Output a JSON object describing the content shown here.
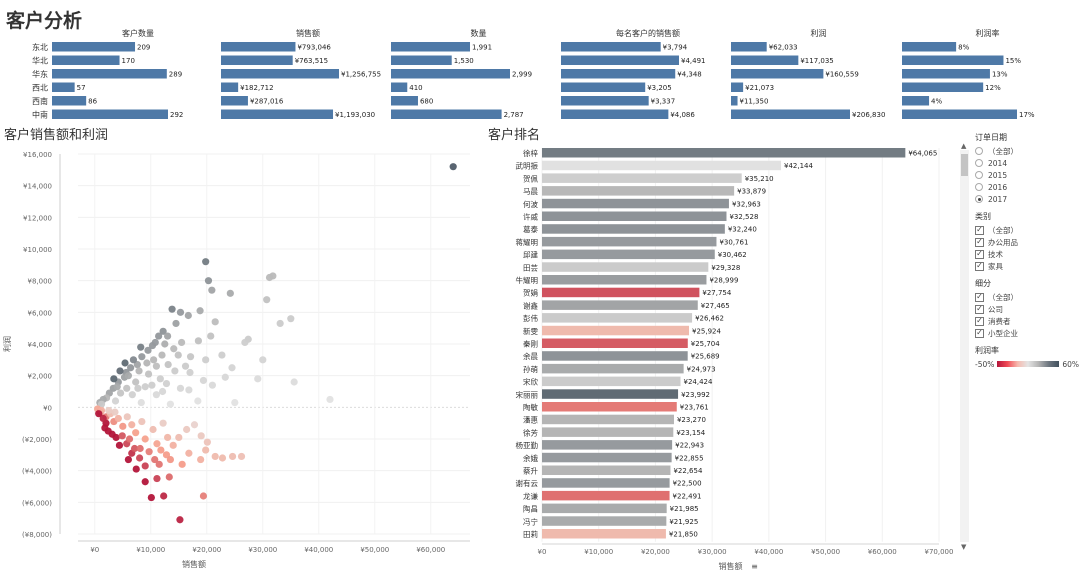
{
  "page_title": "客户分析",
  "colors": {
    "bar_blue": "#4e79a7",
    "text": "#333333",
    "grid": "#eeeeee"
  },
  "sections": {
    "scatter_title": "客户销售额和利润",
    "rank_title": "客户排名"
  },
  "chart_data": [
    {
      "type": "bar",
      "id": "region_summary",
      "categories": [
        "东北",
        "华北",
        "华东",
        "西北",
        "西南",
        "中南"
      ],
      "series": [
        {
          "name": "客户数量",
          "values": [
            209,
            170,
            289,
            57,
            86,
            292
          ],
          "labels": [
            "209",
            "170",
            "289",
            "57",
            "86",
            "292"
          ]
        },
        {
          "name": "销售额",
          "values": [
            793046,
            763515,
            1256755,
            182712,
            287016,
            1193030
          ],
          "labels": [
            "¥793,046",
            "¥763,515",
            "¥1,256,755",
            "¥182,712",
            "¥287,016",
            "¥1,193,030"
          ]
        },
        {
          "name": "数量",
          "values": [
            1991,
            1530,
            2999,
            410,
            680,
            2787
          ],
          "labels": [
            "1,991",
            "1,530",
            "2,999",
            "410",
            "680",
            "2,787"
          ]
        },
        {
          "name": "每名客户的销售额",
          "values": [
            3794,
            4491,
            4348,
            3205,
            3337,
            4086
          ],
          "labels": [
            "¥3,794",
            "¥4,491",
            "¥4,348",
            "¥3,205",
            "¥3,337",
            "¥4,086"
          ]
        },
        {
          "name": "利润",
          "values": [
            62033,
            117035,
            160559,
            21073,
            11350,
            206830
          ],
          "labels": [
            "¥62,033",
            "¥117,035",
            "¥160,559",
            "¥21,073",
            "¥11,350",
            "¥206,830"
          ]
        },
        {
          "name": "利润率",
          "values": [
            8,
            15,
            13,
            12,
            4,
            17
          ],
          "labels": [
            "8%",
            "15%",
            "13%",
            "12%",
            "4%",
            "17%"
          ]
        }
      ]
    },
    {
      "type": "scatter",
      "id": "customer_sales_profit",
      "title": "客户销售额和利润",
      "xlabel": "销售额",
      "ylabel": "利润",
      "xlim": [
        -3000,
        67000
      ],
      "ylim": [
        -8000,
        16000
      ],
      "x_ticks": [
        0,
        10000,
        20000,
        30000,
        40000,
        50000,
        60000
      ],
      "x_tick_labels": [
        "¥0",
        "¥10,000",
        "¥20,000",
        "¥30,000",
        "¥40,000",
        "¥50,000",
        "¥60,000"
      ],
      "y_ticks": [
        16000,
        14000,
        12000,
        10000,
        8000,
        6000,
        4000,
        2000,
        0,
        -2000,
        -4000,
        -6000,
        -8000
      ],
      "y_tick_labels": [
        "¥16,000",
        "¥14,000",
        "¥12,000",
        "¥10,000",
        "¥8,000",
        "¥6,000",
        "¥4,000",
        "¥2,000",
        "¥0",
        "(¥2,000)",
        "(¥4,000)",
        "(¥6,000)",
        "(¥8,000)"
      ],
      "points": [
        [
          64000,
          15200,
          0.56
        ],
        [
          19800,
          9200,
          0.47
        ],
        [
          31800,
          8300,
          0.26
        ],
        [
          31200,
          8200,
          0.26
        ],
        [
          20300,
          8000,
          0.4
        ],
        [
          20900,
          7400,
          0.35
        ],
        [
          24200,
          7200,
          0.33
        ],
        [
          30700,
          6800,
          0.22
        ],
        [
          13800,
          6200,
          0.45
        ],
        [
          15300,
          6000,
          0.38
        ],
        [
          18800,
          6100,
          0.33
        ],
        [
          16700,
          5800,
          0.35
        ],
        [
          21500,
          5400,
          0.25
        ],
        [
          33100,
          5300,
          0.16
        ],
        [
          35000,
          5600,
          0.16
        ],
        [
          14500,
          5300,
          0.36
        ],
        [
          12200,
          4800,
          0.4
        ],
        [
          11400,
          4500,
          0.39
        ],
        [
          13000,
          4500,
          0.35
        ],
        [
          20700,
          4500,
          0.22
        ],
        [
          18500,
          4200,
          0.23
        ],
        [
          15500,
          4100,
          0.26
        ],
        [
          27400,
          4300,
          0.16
        ],
        [
          26800,
          4100,
          0.15
        ],
        [
          10300,
          3900,
          0.38
        ],
        [
          9500,
          3600,
          0.38
        ],
        [
          12000,
          3300,
          0.28
        ],
        [
          8400,
          3200,
          0.38
        ],
        [
          17100,
          3200,
          0.19
        ],
        [
          22700,
          3300,
          0.15
        ],
        [
          19800,
          3000,
          0.15
        ],
        [
          30000,
          3000,
          0.1
        ],
        [
          9300,
          2800,
          0.3
        ],
        [
          7600,
          2700,
          0.35
        ],
        [
          11000,
          2600,
          0.24
        ],
        [
          6400,
          2500,
          0.39
        ],
        [
          5600,
          2200,
          0.39
        ],
        [
          14300,
          2300,
          0.16
        ],
        [
          24500,
          2500,
          0.1
        ],
        [
          17000,
          2200,
          0.13
        ],
        [
          35600,
          1600,
          0.05
        ],
        [
          29100,
          1800,
          0.06
        ],
        [
          5300,
          1900,
          0.36
        ],
        [
          4200,
          1600,
          0.38
        ],
        [
          7300,
          1600,
          0.22
        ],
        [
          12800,
          1500,
          0.12
        ],
        [
          9000,
          1300,
          0.14
        ],
        [
          15300,
          1200,
          0.08
        ],
        [
          21000,
          1400,
          0.07
        ],
        [
          3300,
          1200,
          0.36
        ],
        [
          2600,
          900,
          0.35
        ],
        [
          4600,
          900,
          0.2
        ],
        [
          6700,
          800,
          0.12
        ],
        [
          11000,
          800,
          0.07
        ],
        [
          42000,
          500,
          0.01
        ],
        [
          18400,
          400,
          0.02
        ],
        [
          2100,
          600,
          0.29
        ],
        [
          1500,
          500,
          0.33
        ],
        [
          3700,
          400,
          0.11
        ],
        [
          8300,
          300,
          0.04
        ],
        [
          900,
          300,
          0.33
        ],
        [
          1200,
          200,
          0.17
        ],
        [
          13500,
          200,
          0.01
        ],
        [
          25000,
          300,
          0.01
        ],
        [
          6000,
          2000,
          0.33
        ],
        [
          7900,
          2300,
          0.29
        ],
        [
          9600,
          2100,
          0.22
        ],
        [
          10500,
          3000,
          0.29
        ],
        [
          11700,
          1800,
          0.15
        ],
        [
          13100,
          2700,
          0.21
        ],
        [
          14900,
          3300,
          0.22
        ],
        [
          16200,
          2600,
          0.16
        ],
        [
          8200,
          3800,
          0.46
        ],
        [
          10800,
          4100,
          0.38
        ],
        [
          12500,
          4000,
          0.32
        ],
        [
          14100,
          3700,
          0.26
        ],
        [
          6900,
          3000,
          0.43
        ],
        [
          5400,
          2800,
          0.52
        ],
        [
          4500,
          2300,
          0.51
        ],
        [
          3400,
          1800,
          0.53
        ],
        [
          4000,
          1300,
          0.33
        ],
        [
          5700,
          1200,
          0.21
        ],
        [
          7700,
          1200,
          0.16
        ],
        [
          10200,
          1400,
          0.14
        ],
        [
          12100,
          1000,
          0.08
        ],
        [
          16800,
          1100,
          0.07
        ],
        [
          19400,
          1700,
          0.09
        ],
        [
          23300,
          1900,
          0.08
        ],
        [
          500,
          -100,
          -0.2
        ],
        [
          1000,
          -300,
          -0.3
        ],
        [
          2000,
          -600,
          -0.3
        ],
        [
          2800,
          -400,
          -0.14
        ],
        [
          3400,
          -900,
          -0.26
        ],
        [
          4200,
          -700,
          -0.17
        ],
        [
          5000,
          -1200,
          -0.24
        ],
        [
          5800,
          -600,
          -0.1
        ],
        [
          6600,
          -1100,
          -0.17
        ],
        [
          7300,
          -1600,
          -0.22
        ],
        [
          8400,
          -900,
          -0.11
        ],
        [
          9000,
          -2000,
          -0.22
        ],
        [
          10400,
          -1400,
          -0.13
        ],
        [
          11100,
          -2300,
          -0.21
        ],
        [
          12200,
          -1000,
          -0.08
        ],
        [
          13000,
          -1900,
          -0.15
        ],
        [
          3100,
          -1700,
          -0.55
        ],
        [
          4400,
          -2400,
          -0.55
        ],
        [
          5700,
          -2300,
          -0.4
        ],
        [
          6600,
          -2900,
          -0.44
        ],
        [
          8000,
          -3200,
          -0.4
        ],
        [
          9000,
          -3700,
          -0.41
        ],
        [
          7400,
          -3900,
          -0.53
        ],
        [
          10700,
          -3300,
          -0.31
        ],
        [
          11800,
          -2700,
          -0.23
        ],
        [
          12800,
          -3000,
          -0.23
        ],
        [
          14000,
          -2400,
          -0.17
        ],
        [
          15000,
          -1900,
          -0.13
        ],
        [
          16400,
          -1400,
          -0.09
        ],
        [
          17800,
          -1100,
          -0.06
        ],
        [
          18900,
          -3300,
          -0.17
        ],
        [
          20100,
          -2200,
          -0.11
        ],
        [
          21500,
          -3100,
          -0.14
        ],
        [
          22800,
          -3200,
          -0.14
        ],
        [
          24600,
          -3100,
          -0.13
        ],
        [
          26200,
          -3100,
          -0.12
        ],
        [
          19000,
          -1800,
          -0.09
        ],
        [
          15600,
          -3600,
          -0.23
        ],
        [
          13300,
          -4400,
          -0.33
        ],
        [
          11100,
          -4500,
          -0.41
        ],
        [
          10100,
          -5700,
          -0.56
        ],
        [
          12300,
          -5600,
          -0.46
        ],
        [
          15200,
          -7100,
          -0.47
        ],
        [
          19400,
          -5600,
          -0.29
        ],
        [
          9000,
          -4700,
          -0.52
        ],
        [
          6000,
          -3300,
          -0.55
        ],
        [
          2000,
          -1000,
          -0.5
        ],
        [
          1500,
          -700,
          -0.47
        ],
        [
          1200,
          -200,
          -0.17
        ],
        [
          2500,
          -200,
          -0.08
        ],
        [
          3600,
          -300,
          -0.08
        ],
        [
          700,
          -400,
          -0.57
        ],
        [
          1800,
          -1300,
          -0.72
        ],
        [
          2400,
          -1500,
          -0.63
        ],
        [
          3800,
          -1900,
          -0.5
        ],
        [
          4900,
          -1800,
          -0.37
        ],
        [
          6200,
          -2000,
          -0.32
        ],
        [
          7100,
          -2600,
          -0.37
        ],
        [
          8100,
          -2600,
          -0.32
        ],
        [
          9700,
          -2800,
          -0.29
        ],
        [
          11500,
          -3600,
          -0.31
        ],
        [
          13500,
          -3300,
          -0.24
        ],
        [
          16800,
          -2900,
          -0.17
        ],
        [
          19800,
          -2700,
          -0.14
        ]
      ]
    },
    {
      "type": "bar",
      "id": "customer_ranking",
      "title": "客户排名",
      "xlabel": "销售额",
      "xlim": [
        0,
        70000
      ],
      "x_ticks": [
        0,
        10000,
        20000,
        30000,
        40000,
        50000,
        60000,
        70000
      ],
      "x_tick_labels": [
        "¥0",
        "¥10,000",
        "¥20,000",
        "¥30,000",
        "¥40,000",
        "¥50,000",
        "¥60,000",
        "¥70,000"
      ],
      "categories": [
        "徐梓",
        "武明振",
        "贺佩",
        "马晨",
        "何波",
        "许威",
        "葛泰",
        "蒋耀明",
        "邱建",
        "田芸",
        "牛耀明",
        "贺娟",
        "谢鑫",
        "彭伟",
        "新雯",
        "秦刚",
        "余晨",
        "孙萌",
        "宋欣",
        "宋丽丽",
        "陶敏",
        "潘惠",
        "徐芳",
        "杨亚勤",
        "余娥",
        "蔡升",
        "谢有云",
        "龙谦",
        "陶昌",
        "冯宁",
        "田莉"
      ],
      "values": [
        64065,
        42144,
        35210,
        33879,
        32963,
        32528,
        32240,
        30761,
        30462,
        29328,
        28999,
        27754,
        27465,
        26462,
        25924,
        25704,
        25689,
        24973,
        24424,
        23992,
        23761,
        23270,
        23154,
        22943,
        22855,
        22654,
        22500,
        22491,
        21985,
        21925,
        21850
      ],
      "labels": [
        "¥64,065",
        "¥42,144",
        "¥35,210",
        "¥33,879",
        "¥32,963",
        "¥32,528",
        "¥32,240",
        "¥30,761",
        "¥30,462",
        "¥29,328",
        "¥28,999",
        "¥27,754",
        "¥27,465",
        "¥26,462",
        "¥25,924",
        "¥25,704",
        "¥25,689",
        "¥24,973",
        "¥24,424",
        "¥23,992",
        "¥23,761",
        "¥23,270",
        "¥23,154",
        "¥22,943",
        "¥22,855",
        "¥22,654",
        "¥22,500",
        "¥22,491",
        "¥21,985",
        "¥21,925",
        "¥21,850"
      ],
      "margins": [
        0.47,
        0.02,
        0.14,
        0.28,
        0.4,
        0.4,
        0.4,
        0.38,
        0.38,
        0.16,
        0.37,
        -0.38,
        0.35,
        0.16,
        -0.14,
        -0.36,
        0.4,
        0.33,
        0.16,
        0.52,
        -0.3,
        0.3,
        0.3,
        0.38,
        0.38,
        0.3,
        0.38,
        -0.32,
        0.33,
        0.33,
        -0.14
      ]
    }
  ],
  "filters": {
    "order_date": {
      "title": "订单日期",
      "options": [
        "（全部）",
        "2014",
        "2015",
        "2016",
        "2017"
      ],
      "selected": "2017"
    },
    "category": {
      "title": "类别",
      "options": [
        "（全部）",
        "办公用品",
        "技术",
        "家具"
      ]
    },
    "segment": {
      "title": "细分",
      "options": [
        "（全部）",
        "公司",
        "消费者",
        "小型企业"
      ]
    },
    "legend": {
      "title": "利润率",
      "min_label": "-50%",
      "max_label": "60%"
    }
  }
}
